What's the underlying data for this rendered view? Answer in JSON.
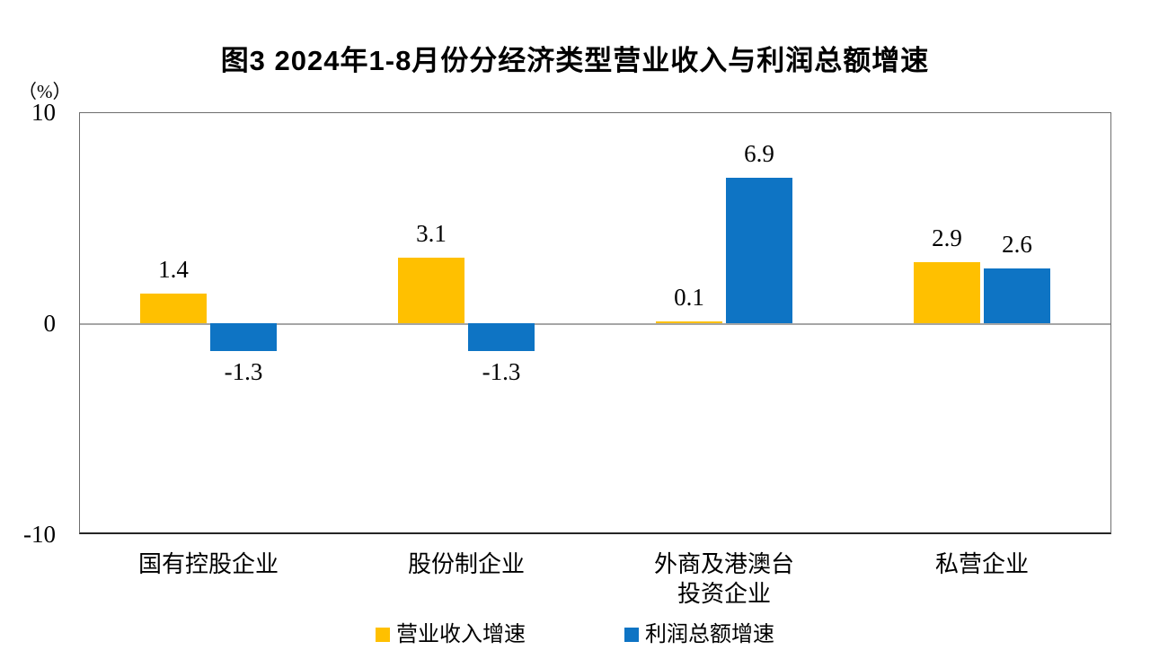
{
  "title": "图3  2024年1-8月份分经济类型营业收入与利润总额增速",
  "unit_label": "（%）",
  "colors": {
    "revenue_bar": "#FFC000",
    "profit_bar": "#0E74C4",
    "zero_line": "#A6A6A6",
    "plot_frame": "#6E6E6E",
    "x_axis": "#262626"
  },
  "chart_data": {
    "type": "bar",
    "categories": [
      "国有控股企业",
      "股份制企业",
      "外商及港澳台\n投资企业",
      "私营企业"
    ],
    "series": [
      {
        "name": "营业收入增速",
        "color": "#FFC000",
        "values": [
          1.4,
          3.1,
          0.1,
          2.9
        ]
      },
      {
        "name": "利润总额增速",
        "color": "#0E74C4",
        "values": [
          -1.3,
          -1.3,
          6.9,
          2.6
        ]
      }
    ],
    "data_labels": {
      "营业收入增速": [
        "1.4",
        "3.1",
        "0.1",
        "2.9"
      ],
      "利润总额增速": [
        "-1.3",
        "-1.3",
        "6.9",
        "2.6"
      ]
    },
    "ylabel": "（%）",
    "ylim": [
      -10,
      10
    ],
    "yticks": [
      "10",
      "0",
      "-10"
    ],
    "ytick_values": [
      10,
      0,
      -10
    ],
    "grid": false,
    "legend_position": "bottom"
  }
}
